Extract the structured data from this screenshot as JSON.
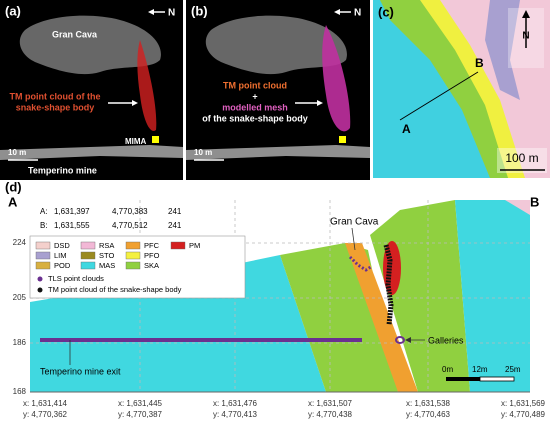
{
  "panels": {
    "a": {
      "label": "(a)",
      "north": "N",
      "site": "Gran Cava",
      "caption_1": "TM point cloud of the",
      "caption_2": "snake-shape body",
      "mima": "MIMA",
      "scale": "10 m",
      "mine": "Temperino mine"
    },
    "b": {
      "label": "(b)",
      "north": "N",
      "caption_1": "TM point cloud",
      "caption_2": "+",
      "caption_3": "modelled mesh",
      "caption_4": "of the snake-shape body",
      "scale": "10 m"
    },
    "c": {
      "label": "(c)",
      "north": "N",
      "point_a": "A",
      "point_b": "B",
      "scale": "100 m"
    },
    "d": {
      "label": "(d)",
      "end_a": "A",
      "end_b": "B",
      "coords": [
        [
          "A:",
          "1,631,397",
          "4,770,383",
          "241"
        ],
        [
          "B:",
          "1,631,555",
          "4,770,512",
          "241"
        ]
      ],
      "units": [
        "DSD",
        "RSA",
        "PFC",
        "PM",
        "LIM",
        "STO",
        "PFO",
        "POD",
        "MAS",
        "SKA"
      ],
      "points": [
        "TLS point clouds",
        "TM point cloud of the snake-shape body"
      ],
      "y_labels": [
        "224",
        "205",
        "186",
        "168"
      ],
      "x_labels": [
        [
          "x: 1,631,414",
          "y: 4,770,362"
        ],
        [
          "x: 1,631,445",
          "y: 4,770,387"
        ],
        [
          "x: 1,631,476",
          "y: 4,770,413"
        ],
        [
          "x: 1,631,507",
          "y: 4,770,438"
        ],
        [
          "x: 1,631,538",
          "y: 4,770,463"
        ],
        [
          "x: 1,631,569",
          "y: 4,770,489"
        ]
      ],
      "gran_cava": "Gran Cava",
      "galleries": "Galleries",
      "mine_exit": "Temperino mine exit",
      "scale": [
        "0m",
        "12m",
        "25m"
      ]
    }
  }
}
